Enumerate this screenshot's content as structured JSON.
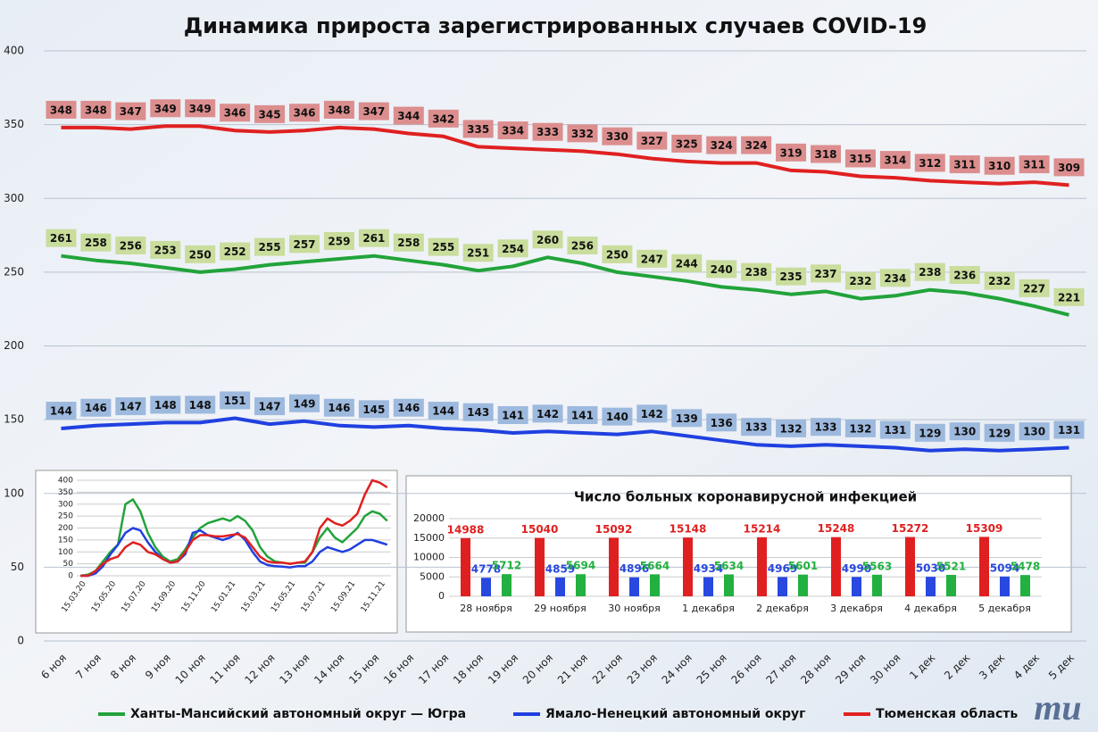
{
  "chart_data": [
    {
      "type": "line",
      "title": "Динамика прироста зарегистрированных случаев COVID-19",
      "categories": [
        "6 ноя",
        "7 ноя",
        "8 ноя",
        "9 ноя",
        "10 ноя",
        "11 ноя",
        "12 ноя",
        "13 ноя",
        "14 ноя",
        "15 ноя",
        "16 ноя",
        "17 ноя",
        "18 ноя",
        "19 ноя",
        "20 ноя",
        "21 ноя",
        "22 ноя",
        "23 ноя",
        "24 ноя",
        "25 ноя",
        "26 ноя",
        "27 ноя",
        "28 ноя",
        "29 ноя",
        "30 ноя",
        "1 дек",
        "2 дек",
        "3 дек",
        "4 дек",
        "5 дек"
      ],
      "series": [
        {
          "name": "Ханты-Мансийский автономный округ — Югра",
          "color": "#22a33a",
          "label_color": "#c9dd9c",
          "values": [
            261,
            258,
            256,
            253,
            250,
            252,
            255,
            257,
            259,
            261,
            258,
            255,
            251,
            254,
            260,
            256,
            250,
            247,
            244,
            240,
            238,
            235,
            237,
            232,
            234,
            238,
            236,
            232,
            227,
            221
          ]
        },
        {
          "name": "Ямало-Ненецкий автономный округ",
          "color": "#2040e0",
          "label_color": "#9db9de",
          "values": [
            144,
            146,
            147,
            148,
            148,
            151,
            147,
            149,
            146,
            145,
            146,
            144,
            143,
            141,
            142,
            141,
            140,
            142,
            139,
            136,
            133,
            132,
            133,
            132,
            131,
            129,
            130,
            129,
            130,
            131
          ]
        },
        {
          "name": "Тюменская область",
          "color": "#e02020",
          "label_color": "#dc8e8e",
          "values": [
            348,
            348,
            347,
            349,
            349,
            346,
            345,
            346,
            348,
            347,
            344,
            342,
            335,
            334,
            333,
            332,
            330,
            327,
            325,
            324,
            324,
            319,
            318,
            315,
            314,
            312,
            311,
            310,
            311,
            309
          ]
        }
      ],
      "ylim": [
        0,
        400
      ],
      "yticks": [
        0,
        50,
        100,
        150,
        200,
        250,
        300,
        350,
        400
      ],
      "grid": true,
      "data_labels": true,
      "legend": "bottom"
    },
    {
      "type": "line",
      "categories": [
        "15.03.20",
        null,
        null,
        null,
        "15.05.20",
        null,
        null,
        null,
        "15.07.20",
        null,
        null,
        null,
        "15.09.20",
        null,
        null,
        null,
        "15.11.20",
        null,
        null,
        null,
        "15.01.21",
        null,
        null,
        null,
        "15.03.21",
        null,
        null,
        null,
        "15.05.21",
        null,
        null,
        null,
        "15.07.21",
        null,
        null,
        null,
        "15.09.21",
        null,
        null,
        null,
        "15.11.21",
        null
      ],
      "series": [
        {
          "color": "#22a33a",
          "values": [
            0,
            5,
            20,
            60,
            100,
            130,
            300,
            320,
            270,
            180,
            120,
            80,
            60,
            70,
            110,
            160,
            200,
            220,
            230,
            240,
            230,
            250,
            230,
            190,
            120,
            80,
            60,
            55,
            50,
            55,
            55,
            100,
            160,
            200,
            160,
            140,
            170,
            200,
            250,
            270,
            260,
            230
          ]
        },
        {
          "color": "#2040e0",
          "values": [
            0,
            0,
            10,
            40,
            90,
            130,
            180,
            200,
            190,
            140,
            100,
            70,
            55,
            60,
            90,
            180,
            190,
            170,
            160,
            150,
            160,
            180,
            150,
            100,
            60,
            45,
            40,
            38,
            35,
            40,
            40,
            60,
            100,
            120,
            110,
            100,
            110,
            130,
            150,
            150,
            140,
            130
          ]
        },
        {
          "color": "#e02020",
          "values": [
            0,
            0,
            20,
            50,
            70,
            80,
            120,
            140,
            130,
            100,
            90,
            70,
            55,
            60,
            100,
            150,
            170,
            170,
            165,
            165,
            170,
            175,
            160,
            120,
            80,
            60,
            55,
            55,
            50,
            55,
            60,
            100,
            200,
            240,
            220,
            210,
            230,
            260,
            340,
            400,
            390,
            370
          ]
        }
      ],
      "ylim": [
        0,
        400
      ],
      "yticks": [
        0,
        50,
        100,
        150,
        200,
        250,
        300,
        350,
        400
      ],
      "grid": true
    },
    {
      "type": "bar",
      "title": "Число больных  коронавирусной  инфекцией",
      "categories": [
        "28 ноября",
        "29 ноября",
        "30 ноября",
        "1 декабря",
        "2 декабря",
        "3 декабря",
        "4 декабря",
        "5 декабря"
      ],
      "series": [
        {
          "color": "#e02020",
          "values": [
            14988,
            15040,
            15092,
            15148,
            15214,
            15248,
            15272,
            15309
          ]
        },
        {
          "color": "#2848e0",
          "values": [
            4778,
            4859,
            4896,
            4934,
            4969,
            4990,
            5030,
            5094
          ]
        },
        {
          "color": "#22b040",
          "values": [
            5712,
            5694,
            5664,
            5634,
            5601,
            5563,
            5521,
            5478
          ]
        }
      ],
      "ylim": [
        0,
        20000
      ],
      "yticks": [
        0,
        5000,
        10000,
        15000,
        20000
      ],
      "grid": true,
      "data_labels": true
    }
  ],
  "logo": "mu"
}
